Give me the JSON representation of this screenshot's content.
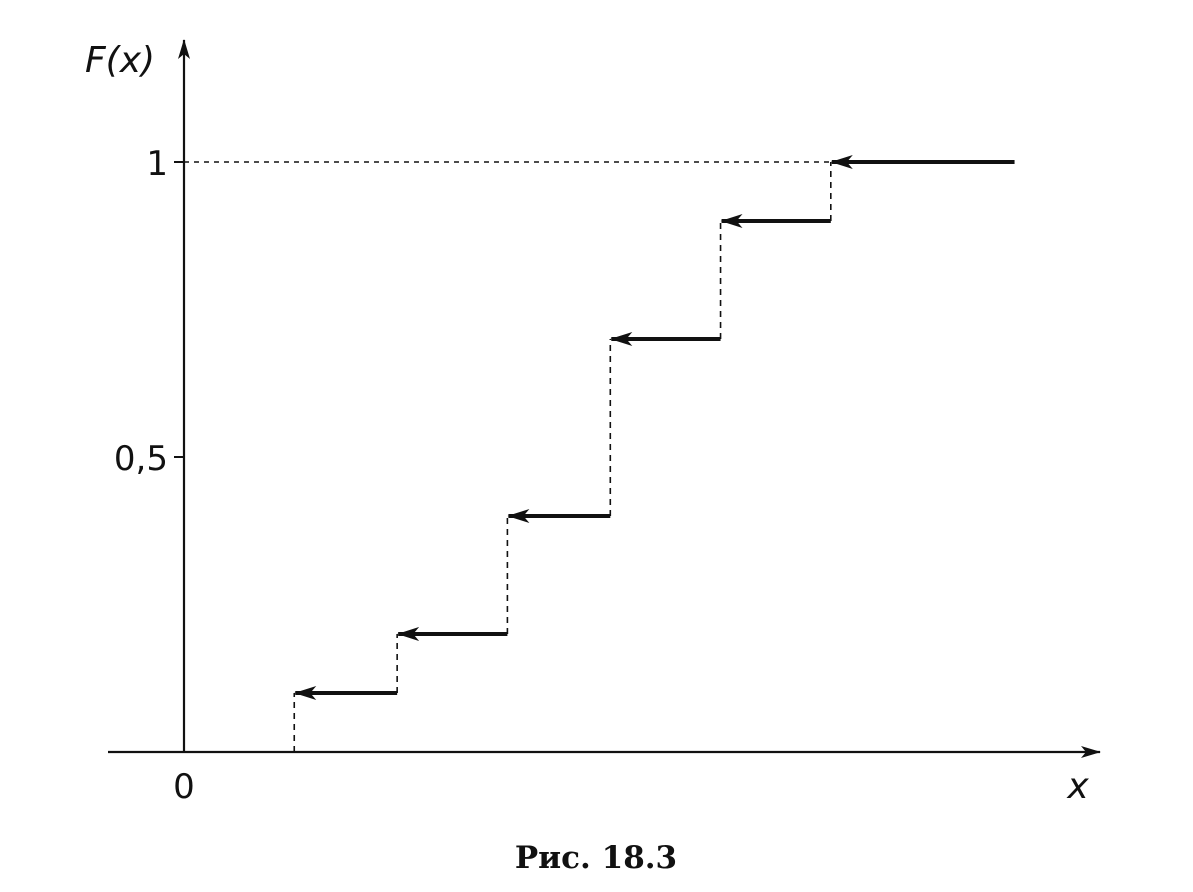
{
  "chart_data": {
    "type": "line",
    "step_style": "left-continuous step function with arrows pointing left; dashed vertical jumps",
    "title": "",
    "caption": "Рис. 18.3",
    "xlabel": "x",
    "ylabel": "F(x)",
    "origin_label": "0",
    "y_ticks": [
      {
        "value": 0.5,
        "label": "0,5"
      },
      {
        "value": 1,
        "label": "1"
      }
    ],
    "xlim": [
      0,
      12
    ],
    "ylim": [
      0,
      1.15
    ],
    "grid": false,
    "dashed_reference_line": {
      "y": 1
    },
    "steps": [
      {
        "x_start": 1.5,
        "x_end": 2.9,
        "y": 0.1
      },
      {
        "x_start": 2.9,
        "x_end": 4.4,
        "y": 0.2
      },
      {
        "x_start": 4.4,
        "x_end": 5.8,
        "y": 0.4
      },
      {
        "x_start": 5.8,
        "x_end": 7.3,
        "y": 0.7
      },
      {
        "x_start": 7.3,
        "x_end": 8.8,
        "y": 0.9
      },
      {
        "x_start": 8.8,
        "x_end": 11.3,
        "y": 1.0
      }
    ],
    "colors": {
      "ink": "#111111",
      "background": "#ffffff"
    }
  }
}
